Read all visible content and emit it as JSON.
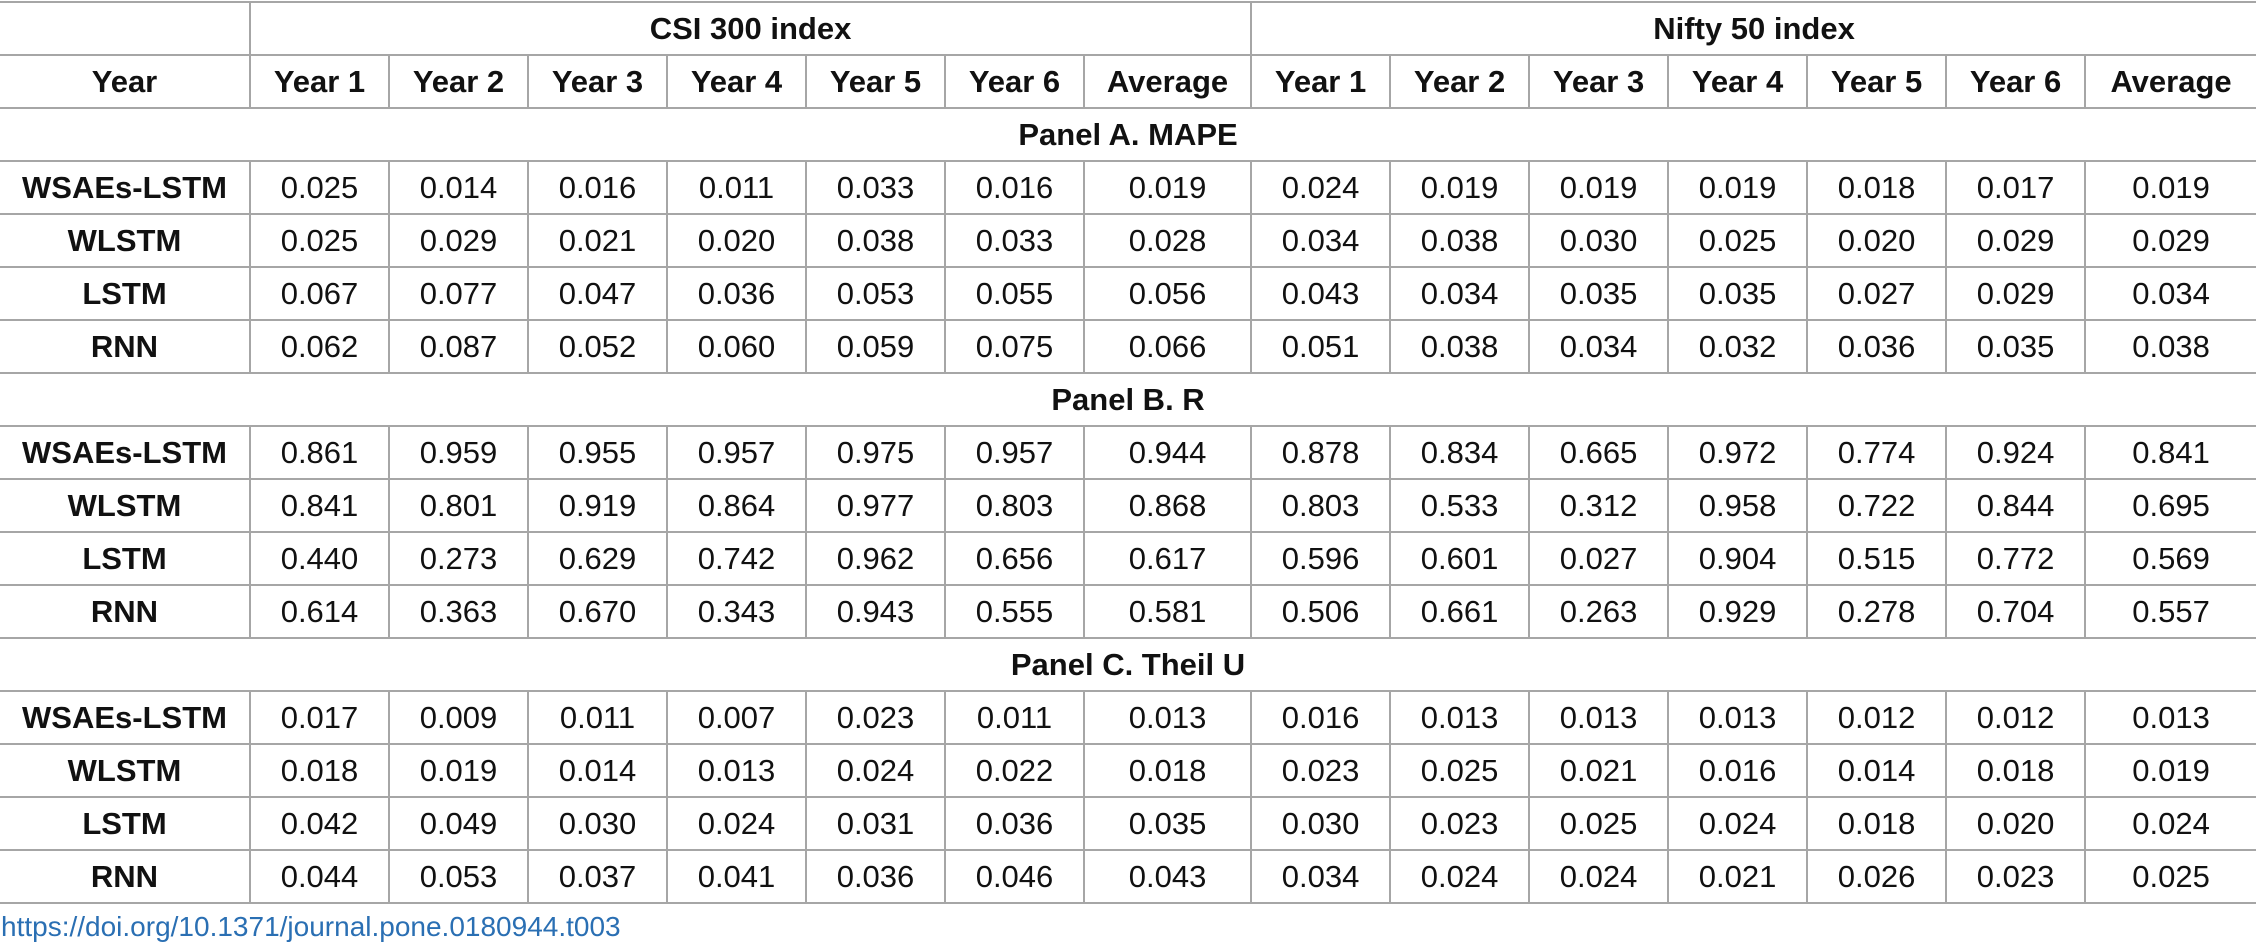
{
  "table": {
    "row_header": "Year",
    "groups": [
      "CSI 300 index",
      "Nifty 50 index"
    ],
    "columns": [
      "Year 1",
      "Year 2",
      "Year 3",
      "Year 4",
      "Year 5",
      "Year 6",
      "Average"
    ],
    "panels": [
      {
        "title": "Panel A. MAPE",
        "rows": [
          {
            "model": "WSAEs-LSTM",
            "values": [
              "0.025",
              "0.014",
              "0.016",
              "0.011",
              "0.033",
              "0.016",
              "0.019",
              "0.024",
              "0.019",
              "0.019",
              "0.019",
              "0.018",
              "0.017",
              "0.019"
            ]
          },
          {
            "model": "WLSTM",
            "values": [
              "0.025",
              "0.029",
              "0.021",
              "0.020",
              "0.038",
              "0.033",
              "0.028",
              "0.034",
              "0.038",
              "0.030",
              "0.025",
              "0.020",
              "0.029",
              "0.029"
            ]
          },
          {
            "model": "LSTM",
            "values": [
              "0.067",
              "0.077",
              "0.047",
              "0.036",
              "0.053",
              "0.055",
              "0.056",
              "0.043",
              "0.034",
              "0.035",
              "0.035",
              "0.027",
              "0.029",
              "0.034"
            ]
          },
          {
            "model": "RNN",
            "values": [
              "0.062",
              "0.087",
              "0.052",
              "0.060",
              "0.059",
              "0.075",
              "0.066",
              "0.051",
              "0.038",
              "0.034",
              "0.032",
              "0.036",
              "0.035",
              "0.038"
            ]
          }
        ]
      },
      {
        "title": "Panel B. R",
        "rows": [
          {
            "model": "WSAEs-LSTM",
            "values": [
              "0.861",
              "0.959",
              "0.955",
              "0.957",
              "0.975",
              "0.957",
              "0.944",
              "0.878",
              "0.834",
              "0.665",
              "0.972",
              "0.774",
              "0.924",
              "0.841"
            ]
          },
          {
            "model": "WLSTM",
            "values": [
              "0.841",
              "0.801",
              "0.919",
              "0.864",
              "0.977",
              "0.803",
              "0.868",
              "0.803",
              "0.533",
              "0.312",
              "0.958",
              "0.722",
              "0.844",
              "0.695"
            ]
          },
          {
            "model": "LSTM",
            "values": [
              "0.440",
              "0.273",
              "0.629",
              "0.742",
              "0.962",
              "0.656",
              "0.617",
              "0.596",
              "0.601",
              "0.027",
              "0.904",
              "0.515",
              "0.772",
              "0.569"
            ]
          },
          {
            "model": "RNN",
            "values": [
              "0.614",
              "0.363",
              "0.670",
              "0.343",
              "0.943",
              "0.555",
              "0.581",
              "0.506",
              "0.661",
              "0.263",
              "0.929",
              "0.278",
              "0.704",
              "0.557"
            ]
          }
        ]
      },
      {
        "title": "Panel C. Theil U",
        "rows": [
          {
            "model": "WSAEs-LSTM",
            "values": [
              "0.017",
              "0.009",
              "0.011",
              "0.007",
              "0.023",
              "0.011",
              "0.013",
              "0.016",
              "0.013",
              "0.013",
              "0.013",
              "0.012",
              "0.012",
              "0.013"
            ]
          },
          {
            "model": "WLSTM",
            "values": [
              "0.018",
              "0.019",
              "0.014",
              "0.013",
              "0.024",
              "0.022",
              "0.018",
              "0.023",
              "0.025",
              "0.021",
              "0.016",
              "0.014",
              "0.018",
              "0.019"
            ]
          },
          {
            "model": "LSTM",
            "values": [
              "0.042",
              "0.049",
              "0.030",
              "0.024",
              "0.031",
              "0.036",
              "0.035",
              "0.030",
              "0.023",
              "0.025",
              "0.024",
              "0.018",
              "0.020",
              "0.024"
            ]
          },
          {
            "model": "RNN",
            "values": [
              "0.044",
              "0.053",
              "0.037",
              "0.041",
              "0.036",
              "0.046",
              "0.043",
              "0.034",
              "0.024",
              "0.024",
              "0.021",
              "0.026",
              "0.023",
              "0.025"
            ]
          }
        ]
      }
    ]
  },
  "doi": "https://doi.org/10.1371/journal.pone.0180944.t003",
  "colors": {
    "border": "#a6a6a6",
    "link": "#2a6fb3",
    "text": "#111111"
  }
}
